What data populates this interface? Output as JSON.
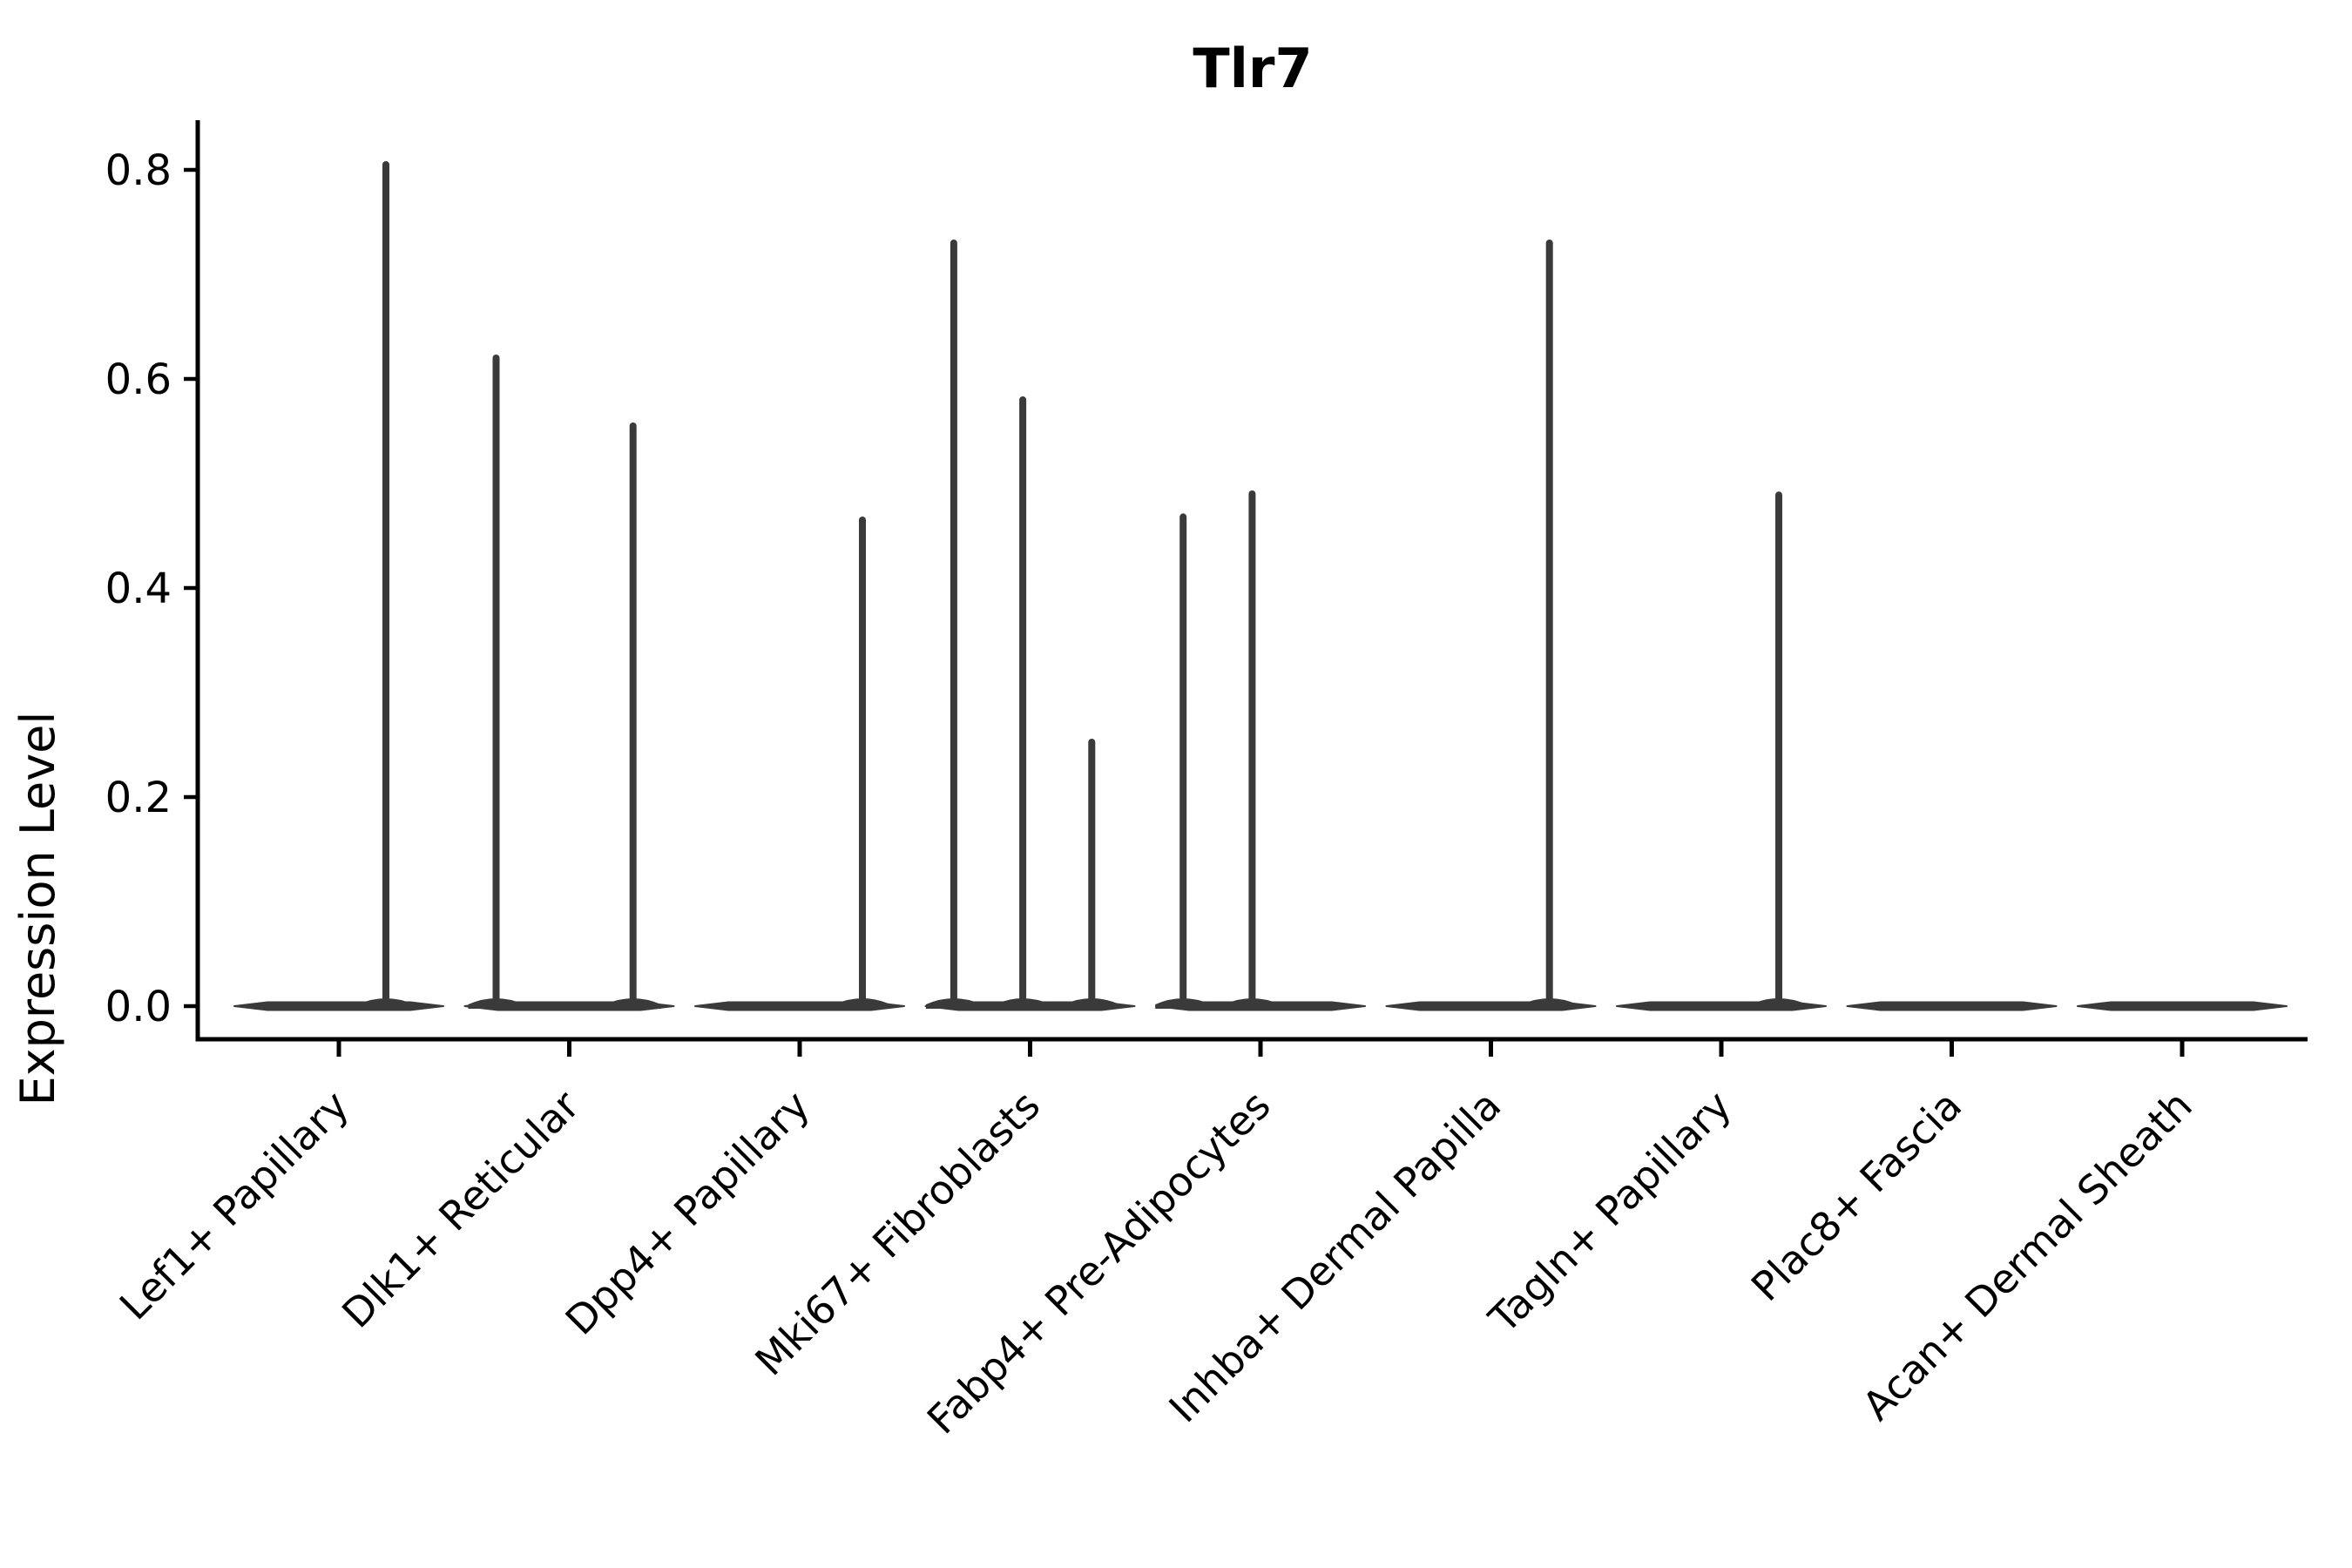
{
  "chart": {
    "title": "Tlr7",
    "ylabel": "Expression Level",
    "colors": {
      "background": "#ffffff",
      "violin": "#3a3a3a",
      "axis": "#000000",
      "text": "#000000"
    }
  },
  "chart_data": {
    "type": "violin",
    "title": "Tlr7",
    "xlabel": "",
    "ylabel": "Expression Level",
    "grid": false,
    "legend": "none",
    "y_ticks": [
      0.0,
      0.2,
      0.4,
      0.6,
      0.8
    ],
    "y_tick_labels": [
      "0.0",
      "0.2",
      "0.4",
      "0.6",
      "0.8"
    ],
    "ylim": [
      -0.032,
      0.847
    ],
    "baseline_value": 0.0,
    "categories": [
      "Lef1+ Papillary",
      "Dlk1+ Reticular",
      "Dpp4+ Papillary",
      "Mki67+ Fibroblasts",
      "Fabp4+ Pre-Adipocytes",
      "Inhba+ Dermal Papilla",
      "Tagln+ Papillary",
      "Plac8+ Fascia",
      "Acan+ Dermal Sheath"
    ],
    "series": [
      {
        "category": "Lef1+ Papillary",
        "expression_peaks": [
          {
            "value": 0.805,
            "offset": 0.45
          }
        ]
      },
      {
        "category": "Dlk1+ Reticular",
        "expression_peaks": [
          {
            "value": 0.62,
            "offset": -0.7
          },
          {
            "value": 0.555,
            "offset": 0.61
          }
        ]
      },
      {
        "category": "Dpp4+ Papillary",
        "expression_peaks": [
          {
            "value": 0.465,
            "offset": 0.6
          }
        ]
      },
      {
        "category": "Mki67+ Fibroblasts",
        "expression_peaks": [
          {
            "value": 0.73,
            "offset": -0.73
          },
          {
            "value": 0.58,
            "offset": -0.07
          },
          {
            "value": 0.2525,
            "offset": 0.59
          }
        ]
      },
      {
        "category": "Fabp4+ Pre-Adipocytes",
        "expression_peaks": [
          {
            "value": 0.468,
            "offset": -0.74
          },
          {
            "value": 0.49,
            "offset": -0.08
          }
        ]
      },
      {
        "category": "Inhba+ Dermal Papilla",
        "expression_peaks": [
          {
            "value": 0.73,
            "offset": 0.56
          }
        ]
      },
      {
        "category": "Tagln+ Papillary",
        "expression_peaks": [
          {
            "value": 0.489,
            "offset": 0.55
          }
        ]
      },
      {
        "category": "Plac8+ Fascia",
        "expression_peaks": []
      },
      {
        "category": "Acan+ Dermal Sheath",
        "expression_peaks": []
      }
    ]
  }
}
